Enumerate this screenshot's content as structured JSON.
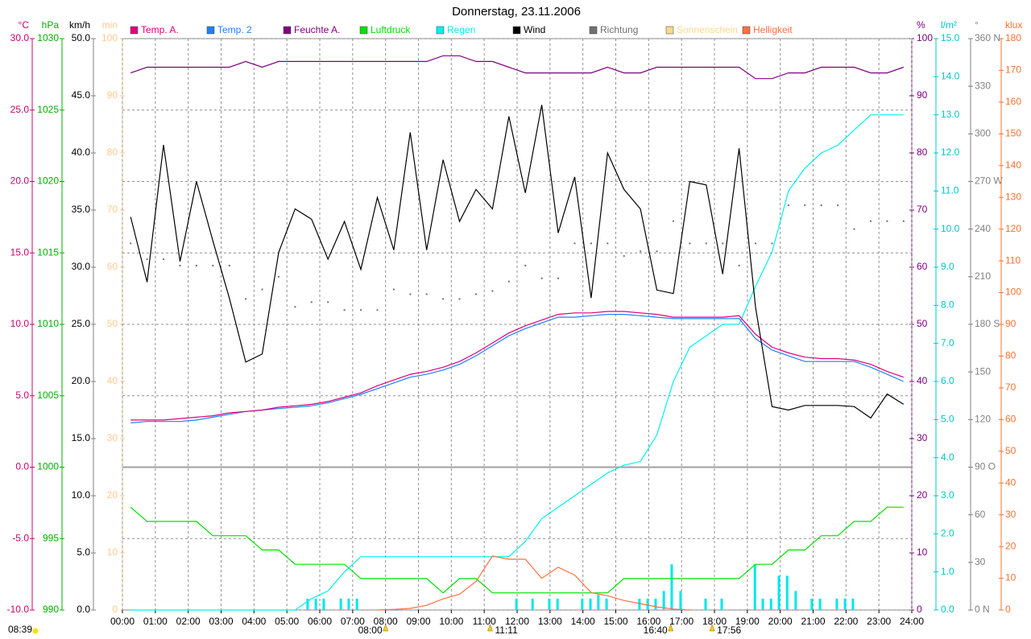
{
  "chart_data": {
    "type": "line",
    "title": "Donnerstag, 23.11.2006",
    "xlim": [
      0,
      24
    ],
    "xticks": [
      {
        "value": 0,
        "label": "00:00"
      },
      {
        "value": 1,
        "label": "01:00"
      },
      {
        "value": 2,
        "label": "02:00"
      },
      {
        "value": 3,
        "label": "03:00"
      },
      {
        "value": 4,
        "label": "04:00"
      },
      {
        "value": 5,
        "label": "05:00"
      },
      {
        "value": 6,
        "label": "06:00"
      },
      {
        "value": 7,
        "label": "07:00"
      },
      {
        "value": 8,
        "label": "08:00"
      },
      {
        "value": 9,
        "label": "09:00"
      },
      {
        "value": 10,
        "label": "10:00"
      },
      {
        "value": 11,
        "label": "11:00"
      },
      {
        "value": 12,
        "label": "12:00"
      },
      {
        "value": 13,
        "label": "13:00"
      },
      {
        "value": 14,
        "label": "14:00"
      },
      {
        "value": 15,
        "label": "15:00"
      },
      {
        "value": 16,
        "label": "16:00"
      },
      {
        "value": 17,
        "label": "17:00"
      },
      {
        "value": 18,
        "label": "18:00"
      },
      {
        "value": 19,
        "label": "19:00"
      },
      {
        "value": 20,
        "label": "20:00"
      },
      {
        "value": 21,
        "label": "21:00"
      },
      {
        "value": 22,
        "label": "22:00"
      },
      {
        "value": 23,
        "label": "23:00"
      },
      {
        "value": 24,
        "label": "24:00"
      }
    ],
    "grid": true,
    "zero_line": true,
    "axes": [
      {
        "label": "°C",
        "color": "#d0006f",
        "side": "left",
        "lim": [
          -10,
          30
        ],
        "ticks": [
          {
            "value": -10,
            "label": "-10.0"
          },
          {
            "value": -5,
            "label": "-5.0"
          },
          {
            "value": 0,
            "label": "0.0"
          },
          {
            "value": 5,
            "label": "5.0"
          },
          {
            "value": 10,
            "label": "10.0"
          },
          {
            "value": 15,
            "label": "15.0"
          },
          {
            "value": 20,
            "label": "20.0"
          },
          {
            "value": 25,
            "label": "25.0"
          },
          {
            "value": 30,
            "label": "30.0"
          }
        ]
      },
      {
        "label": "hPa",
        "color": "#00b000",
        "side": "left",
        "lim": [
          990,
          1030
        ],
        "ticks": [
          990,
          995,
          1000,
          1005,
          1010,
          1015,
          1020,
          1025,
          1030
        ]
      },
      {
        "label": "km/h",
        "color": "#000000",
        "side": "left",
        "lim": [
          0,
          50
        ],
        "ticks": [
          {
            "value": 0,
            "label": "0.0"
          },
          {
            "value": 5,
            "label": "5.0"
          },
          {
            "value": 10,
            "label": "10.0"
          },
          {
            "value": 15,
            "label": "15.0"
          },
          {
            "value": 20,
            "label": "20.0"
          },
          {
            "value": 25,
            "label": "25.0"
          },
          {
            "value": 30,
            "label": "30.0"
          },
          {
            "value": 35,
            "label": "35.0"
          },
          {
            "value": 40,
            "label": "40.0"
          },
          {
            "value": 45,
            "label": "45.0"
          },
          {
            "value": 50,
            "label": "50.0"
          }
        ]
      },
      {
        "label": "min",
        "color": "#ffc890",
        "side": "left",
        "lim": [
          0,
          100
        ],
        "ticks": [
          0,
          10,
          20,
          30,
          40,
          50,
          60,
          70,
          80,
          90,
          100
        ]
      },
      {
        "label": "%",
        "color": "#800080",
        "side": "right",
        "lim": [
          0,
          100
        ],
        "ticks": [
          0,
          10,
          20,
          30,
          40,
          50,
          60,
          70,
          80,
          90,
          100
        ]
      },
      {
        "label": "l/m²",
        "color": "#00c8c8",
        "side": "right",
        "lim": [
          0,
          15
        ],
        "ticks": [
          {
            "value": 0,
            "label": "0.0"
          },
          {
            "value": 1,
            "label": "1.0"
          },
          {
            "value": 2,
            "label": "2.0"
          },
          {
            "value": 3,
            "label": "3.0"
          },
          {
            "value": 4,
            "label": "4.0"
          },
          {
            "value": 5,
            "label": "5.0"
          },
          {
            "value": 6,
            "label": "6.0"
          },
          {
            "value": 7,
            "label": "7.0"
          },
          {
            "value": 8,
            "label": "8.0"
          },
          {
            "value": 9,
            "label": "9.0"
          },
          {
            "value": 10,
            "label": "10.0"
          },
          {
            "value": 11,
            "label": "11.0"
          },
          {
            "value": 12,
            "label": "12.0"
          },
          {
            "value": 13,
            "label": "13.0"
          },
          {
            "value": 14,
            "label": "14.0"
          },
          {
            "value": 15,
            "label": "15.0"
          }
        ]
      },
      {
        "label": "°",
        "color": "#808080",
        "side": "right",
        "lim": [
          0,
          360
        ],
        "ticks": [
          {
            "value": 0,
            "label": "0  N"
          },
          30,
          60,
          {
            "value": 90,
            "label": "90  O"
          },
          120,
          150,
          {
            "value": 180,
            "label": "180  S"
          },
          210,
          240,
          {
            "value": 270,
            "label": "270  W"
          },
          300,
          330,
          {
            "value": 360,
            "label": "360  N"
          }
        ]
      },
      {
        "label": "klux",
        "color": "#ff7030",
        "side": "right",
        "lim": [
          0,
          180
        ],
        "ticks": [
          0,
          10,
          20,
          30,
          40,
          50,
          60,
          70,
          80,
          90,
          100,
          110,
          120,
          130,
          140,
          150,
          160,
          170,
          180
        ]
      }
    ],
    "x": [
      0.25,
      0.75,
      1.25,
      1.75,
      2.25,
      2.75,
      3.25,
      3.75,
      4.25,
      4.75,
      5.25,
      5.75,
      6.25,
      6.75,
      7.25,
      7.75,
      8.25,
      8.75,
      9.25,
      9.75,
      10.25,
      10.75,
      11.25,
      11.75,
      12.25,
      12.75,
      13.25,
      13.75,
      14.25,
      14.75,
      15.25,
      15.75,
      16.25,
      16.75,
      17.25,
      17.75,
      18.25,
      18.75,
      19.25,
      19.75,
      20.25,
      20.75,
      21.25,
      21.75,
      22.25,
      22.75,
      23.25,
      23.75
    ],
    "series": [
      {
        "name": "Temp. A.",
        "color": "#e0007a",
        "axis": 0,
        "values": [
          3.3,
          3.3,
          3.3,
          3.4,
          3.5,
          3.6,
          3.8,
          3.9,
          4.0,
          4.2,
          4.3,
          4.4,
          4.6,
          4.9,
          5.2,
          5.7,
          6.1,
          6.5,
          6.7,
          7.0,
          7.4,
          8.0,
          8.7,
          9.4,
          9.9,
          10.3,
          10.7,
          10.8,
          10.8,
          10.9,
          10.9,
          10.8,
          10.7,
          10.5,
          10.5,
          10.5,
          10.5,
          10.6,
          9.3,
          8.4,
          8.0,
          7.7,
          7.6,
          7.6,
          7.5,
          7.2,
          6.7,
          6.3
        ]
      },
      {
        "name": "Temp. 2",
        "color": "#2080ff",
        "axis": 0,
        "values": [
          3.1,
          3.2,
          3.2,
          3.2,
          3.3,
          3.5,
          3.7,
          3.9,
          4.0,
          4.1,
          4.2,
          4.3,
          4.5,
          4.8,
          5.1,
          5.5,
          5.9,
          6.3,
          6.5,
          6.8,
          7.2,
          7.8,
          8.5,
          9.2,
          9.7,
          10.1,
          10.5,
          10.5,
          10.6,
          10.7,
          10.7,
          10.6,
          10.5,
          10.4,
          10.4,
          10.4,
          10.4,
          10.4,
          9.0,
          8.2,
          7.8,
          7.4,
          7.4,
          7.4,
          7.4,
          7.0,
          6.5,
          6.0
        ]
      },
      {
        "name": "Feuchte A.",
        "color": "#800080",
        "axis": 4,
        "values": [
          94,
          95,
          95,
          95,
          95,
          95,
          95,
          96,
          95,
          96,
          96,
          96,
          96,
          96,
          96,
          96,
          96,
          96,
          96,
          97,
          97,
          96,
          96,
          95,
          94,
          94,
          94,
          94,
          94,
          95,
          94,
          94,
          95,
          95,
          95,
          95,
          95,
          95,
          93,
          93,
          94,
          94,
          95,
          95,
          95,
          94,
          94,
          95
        ]
      },
      {
        "name": "Luftdruck",
        "color": "#00e000",
        "axis": 1,
        "values": [
          997.2,
          996.2,
          996.2,
          996.2,
          996.2,
          995.2,
          995.2,
          995.2,
          994.2,
          994.2,
          993.2,
          993.2,
          993.2,
          993.2,
          992.2,
          992.2,
          992.2,
          992.2,
          992.2,
          991.2,
          992.2,
          992.2,
          991.2,
          991.2,
          991.2,
          991.2,
          991.2,
          991.2,
          991.2,
          991.2,
          992.2,
          992.2,
          992.2,
          992.2,
          992.2,
          992.2,
          992.2,
          992.2,
          993.2,
          993.2,
          994.2,
          994.2,
          995.2,
          995.2,
          996.2,
          996.2,
          997.2,
          997.2
        ]
      },
      {
        "name": "Regen",
        "color": "#00f0f0",
        "axis": 5,
        "values": [
          0,
          0,
          0,
          0,
          0,
          0,
          0,
          0,
          0,
          0,
          0,
          0.3,
          0.5,
          1.0,
          1.4,
          1.4,
          1.4,
          1.4,
          1.4,
          1.4,
          1.4,
          1.4,
          1.4,
          1.4,
          1.8,
          2.4,
          2.7,
          3.0,
          3.3,
          3.6,
          3.8,
          3.9,
          4.6,
          6.0,
          6.9,
          7.2,
          7.5,
          7.5,
          8.5,
          9.4,
          11.0,
          11.6,
          12.0,
          12.2,
          12.6,
          13.0,
          13.0,
          13.0
        ]
      },
      {
        "name": "Wind",
        "color": "#000000",
        "axis": 2,
        "values": [
          34.4,
          28.7,
          40.7,
          30.5,
          37.5,
          32.3,
          27.3,
          21.7,
          22.4,
          31.3,
          35.1,
          34.2,
          30.7,
          34.0,
          29.8,
          36.1,
          31.5,
          41.8,
          31.5,
          39.4,
          34.0,
          36.8,
          35.1,
          43.2,
          36.5,
          44.2,
          33.0,
          37.9,
          27.3,
          40.0,
          36.8,
          35.1,
          28.0,
          27.7,
          37.5,
          37.2,
          29.4,
          40.4,
          26.5,
          17.8,
          17.5,
          17.9,
          17.9,
          17.9,
          17.8,
          16.8,
          18.9,
          18.0
        ]
      },
      {
        "name": "Richtung",
        "color": "#707070",
        "axis": 6,
        "style": "dots",
        "values": [
          231,
          221,
          221,
          217,
          217,
          217,
          217,
          196,
          202,
          210,
          191,
          194,
          194,
          189,
          189,
          189,
          202,
          199,
          199,
          196,
          196,
          199,
          201,
          207,
          217,
          209,
          209,
          231,
          231,
          231,
          223,
          226,
          226,
          245,
          231,
          231,
          231,
          217,
          231,
          231,
          255,
          255,
          255,
          255,
          240,
          245,
          245,
          245
        ]
      },
      {
        "name": "Sonnenschein",
        "color": "#ffd890",
        "axis": 3,
        "values": [
          null,
          null,
          null,
          null,
          null,
          null,
          null,
          null,
          null,
          null,
          null,
          null,
          null,
          null,
          null,
          null,
          null,
          null,
          null,
          null,
          null,
          null,
          null,
          null,
          null,
          null,
          null,
          null,
          null,
          null,
          null,
          null,
          null,
          null,
          null,
          null,
          null,
          null,
          null,
          null,
          null,
          null,
          null,
          null,
          null,
          null,
          null,
          null
        ]
      },
      {
        "name": "Helligkeit",
        "color": "#ff7040",
        "axis": 7,
        "values": [
          null,
          null,
          null,
          null,
          null,
          null,
          null,
          null,
          null,
          null,
          null,
          null,
          null,
          null,
          null,
          0,
          0.2,
          0.5,
          1.5,
          3.5,
          5,
          9,
          17,
          16,
          16,
          10,
          13.5,
          11,
          5.5,
          4.5,
          3,
          2,
          1,
          0.3,
          0,
          null,
          null,
          null,
          null,
          null,
          null,
          null,
          null,
          null,
          null,
          null,
          null,
          null
        ]
      }
    ],
    "rain_amounts": {
      "axis": 5,
      "color": "#00e8e8",
      "x": [
        5.63,
        5.88,
        6.12,
        6.64,
        6.88,
        7.13,
        11.98,
        12.47,
        12.98,
        13.23,
        13.98,
        14.23,
        14.47,
        14.72,
        15.72,
        15.97,
        16.21,
        16.46,
        16.7,
        16.97,
        17.73,
        18.22,
        19.23,
        19.47,
        19.72,
        19.96,
        20.21,
        20.47,
        20.96,
        21.21,
        21.72,
        21.97,
        22.21
      ],
      "values": [
        0.3,
        0.3,
        0.3,
        0.3,
        0.3,
        0.3,
        0.3,
        0.3,
        0.3,
        0.3,
        0.3,
        0.3,
        0.4,
        0.3,
        0.3,
        0.3,
        0.3,
        0.5,
        1.2,
        0.5,
        0.3,
        0.3,
        1.2,
        0.3,
        0.3,
        0.9,
        0.9,
        0.5,
        0.3,
        0.3,
        0.3,
        0.3,
        0.3
      ]
    },
    "annotations": [
      {
        "label": "08:39"
      },
      {
        "x": 8.0,
        "label": "08:00"
      },
      {
        "x": 11.18,
        "label": "11:11"
      },
      {
        "x": 16.67,
        "label": "16:40"
      },
      {
        "x": 17.93,
        "label": "17:56"
      }
    ]
  }
}
